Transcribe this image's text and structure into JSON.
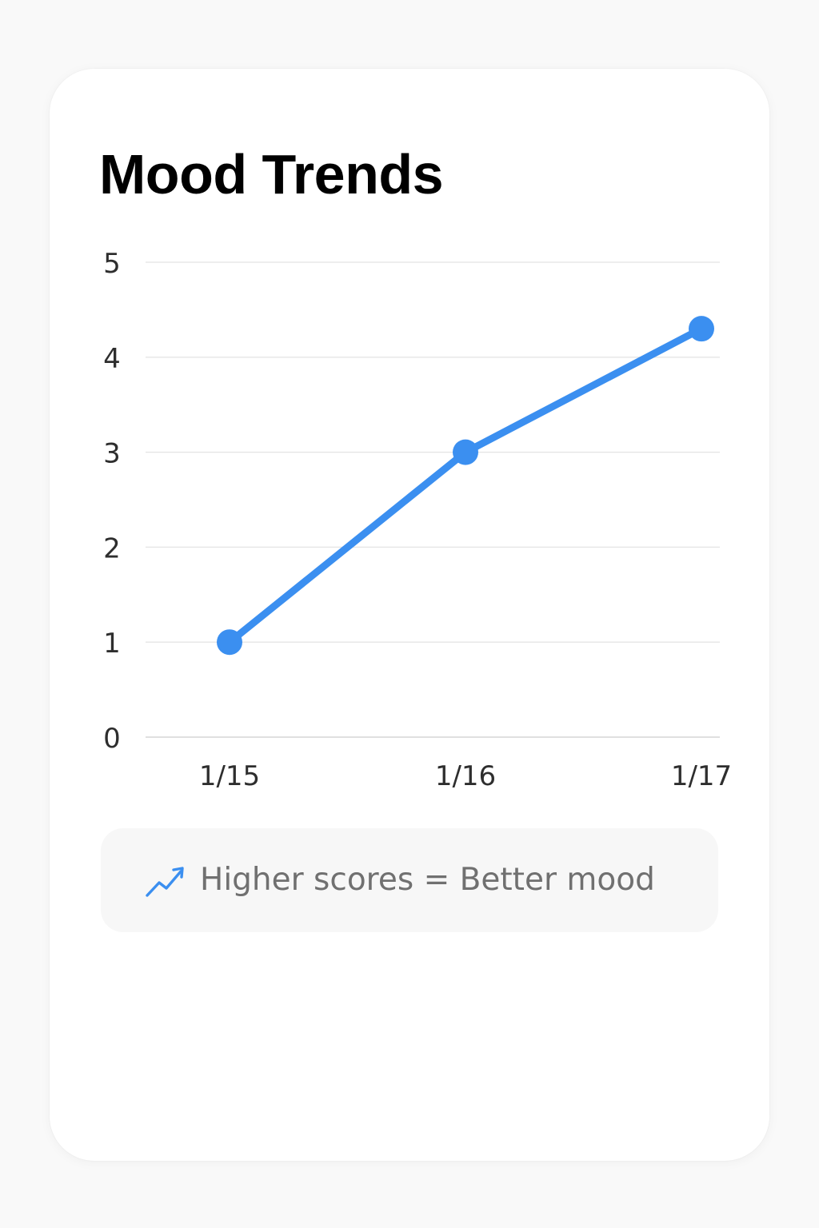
{
  "header": {
    "title": "Mood Trends"
  },
  "chart_data": {
    "type": "line",
    "categories": [
      "1/15",
      "1/16",
      "1/17"
    ],
    "series": [
      {
        "values": [
          1,
          3,
          4.3
        ]
      }
    ],
    "title": "Mood Trends",
    "xlabel": "",
    "ylabel": "",
    "ylim": [
      0,
      5
    ],
    "yticks": [
      "0",
      "1",
      "2",
      "3",
      "4",
      "5"
    ],
    "grid": true,
    "line_color": "#3b8ff0",
    "grid_color": "#e4e4e4"
  },
  "legend": {
    "icon": "trend-up-icon",
    "text": "Higher scores = Better mood",
    "accent": "#3b8ff0"
  }
}
